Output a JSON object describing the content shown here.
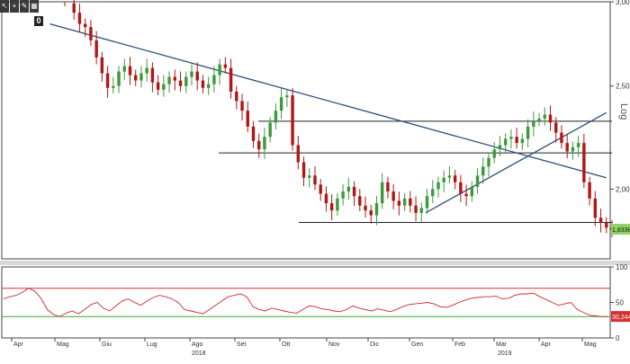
{
  "toolbar": {
    "icons": [
      "cursor-icon",
      "crosshair-icon",
      "pencil-icon",
      "grid-icon"
    ],
    "badge": "0"
  },
  "chart_data": [
    {
      "type": "candlestick",
      "title": "",
      "y_scale": "log",
      "y_scale_label": "Log",
      "ylim": [
        1.72,
        3.0
      ],
      "y_ticks": [
        "3,00",
        "2,50",
        "2,00"
      ],
      "x_month_labels": [
        "Apr",
        "Mag",
        "Giu",
        "Lug",
        "Ago",
        "Set",
        "Ott",
        "Nov",
        "Dic",
        "Gen",
        "Feb",
        "Mar",
        "Apr",
        "Mag"
      ],
      "x_year_labels": [
        "2018",
        "2019"
      ],
      "last_price_label": "1,8338",
      "series": [
        {
          "name": "price",
          "values": [
            2.99,
            2.93,
            2.86,
            2.84,
            2.76,
            2.66,
            2.57,
            2.49,
            2.5,
            2.58,
            2.61,
            2.56,
            2.53,
            2.57,
            2.6,
            2.52,
            2.48,
            2.51,
            2.55,
            2.53,
            2.5,
            2.55,
            2.58,
            2.53,
            2.49,
            2.51,
            2.56,
            2.62,
            2.6,
            2.47,
            2.42,
            2.37,
            2.29,
            2.22,
            2.18,
            2.24,
            2.31,
            2.37,
            2.44,
            2.45,
            2.2,
            2.12,
            2.05,
            2.06,
            2.02,
            1.98,
            1.94,
            1.91,
            1.96,
            1.99,
            2.01,
            1.97,
            1.93,
            1.91,
            1.89,
            1.94,
            2.03,
            1.99,
            1.95,
            1.93,
            1.96,
            1.93,
            1.9,
            1.92,
            1.97,
            2.0,
            2.03,
            2.05,
            2.06,
            2.03,
            1.98,
            1.97,
            2.01,
            2.06,
            2.1,
            2.14,
            2.18,
            2.2,
            2.23,
            2.24,
            2.21,
            2.23,
            2.29,
            2.32,
            2.33,
            2.35,
            2.31,
            2.26,
            2.21,
            2.17,
            2.19,
            2.21,
            2.03,
            1.96,
            1.88,
            1.86,
            1.84,
            1.83
          ]
        }
      ],
      "levels": [
        {
          "name": "resistance-1",
          "value": 2.317
        },
        {
          "name": "support-1",
          "value": 2.163
        },
        {
          "name": "support-2",
          "value": 1.861
        }
      ],
      "trendlines": [
        {
          "name": "downtrend",
          "from": [
            "2018-05-01",
            2.86
          ],
          "to": [
            "2019-05-27",
            2.05
          ]
        },
        {
          "name": "uptrend",
          "from": [
            "2019-01-20",
            1.9
          ],
          "to": [
            "2019-05-27",
            2.36
          ]
        }
      ],
      "colors": {
        "up": "#3c9a3c",
        "down": "#b01818",
        "lines": "#222222",
        "trend": "#2c4e7a",
        "last_price_bg": "#8fd462"
      }
    },
    {
      "type": "line",
      "title": "",
      "ylim": [
        0,
        100
      ],
      "y_ticks": [
        "100",
        "50",
        "0"
      ],
      "levels": [
        70,
        30
      ],
      "last_value_label": "30,2448",
      "series": [
        {
          "name": "",
          "values": [
            55,
            58,
            60,
            64,
            70,
            66,
            56,
            40,
            33,
            30,
            35,
            38,
            34,
            40,
            47,
            50,
            42,
            38,
            45,
            52,
            55,
            50,
            46,
            52,
            57,
            60,
            58,
            55,
            50,
            40,
            38,
            36,
            34,
            40,
            46,
            52,
            58,
            60,
            62,
            58,
            44,
            40,
            38,
            42,
            40,
            38,
            36,
            35,
            40,
            45,
            44,
            41,
            40,
            38,
            37,
            40,
            45,
            42,
            40,
            38,
            41,
            39,
            37,
            40,
            44,
            47,
            48,
            49,
            50,
            48,
            44,
            43,
            46,
            50,
            53,
            56,
            57,
            58,
            58,
            59,
            55,
            56,
            60,
            62,
            62,
            63,
            58,
            54,
            50,
            46,
            48,
            50,
            40,
            36,
            32,
            31,
            30,
            30
          ]
        }
      ],
      "colors": {
        "line": "#cc2a2a",
        "upper": "#d63030",
        "lower": "#3aa83a",
        "last_value_bg": "#d63030"
      }
    }
  ]
}
